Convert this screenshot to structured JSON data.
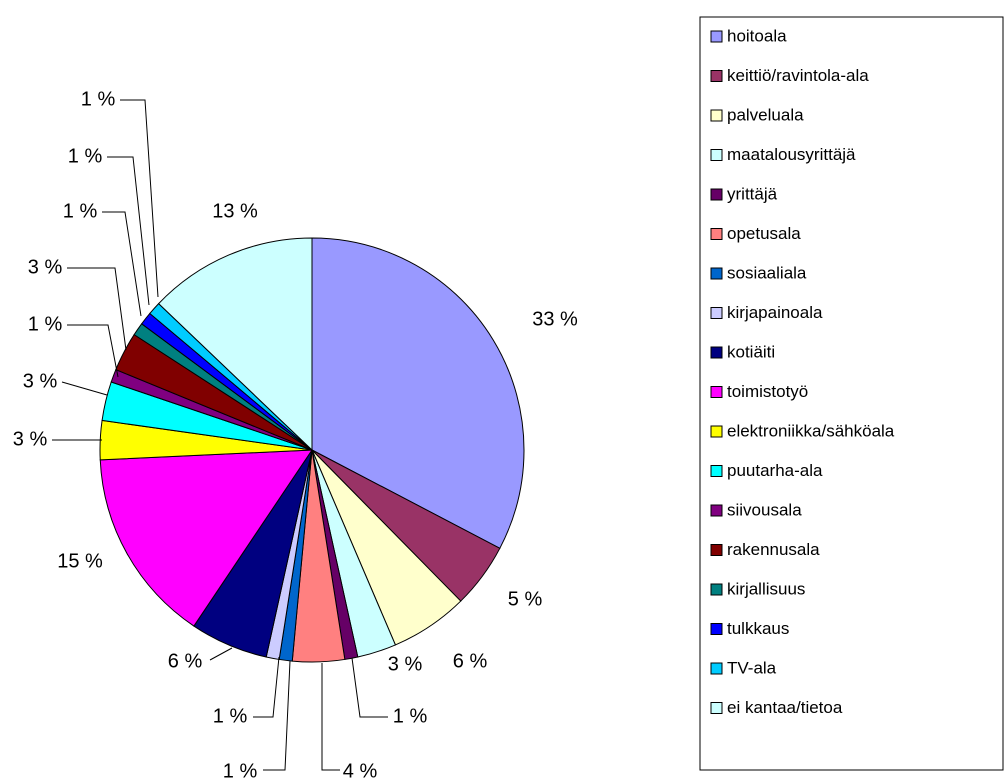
{
  "chart_data": {
    "type": "pie",
    "categories": [
      "hoitoala",
      "keittiö/ravintola-ala",
      "palveluala",
      "maatalousyrittäjä",
      "yrittäjä",
      "opetusala",
      "sosiaaliala",
      "kirjapainoala",
      "kotiäiti",
      "toimistotyö",
      "elektroniikka/sähköala",
      "puutarha-ala",
      "siivousala",
      "rakennusala",
      "kirjallisuus",
      "tulkkaus",
      "TV-ala",
      "ei kantaa/tietoa"
    ],
    "values": [
      33,
      5,
      6,
      3,
      1,
      4,
      1,
      1,
      6,
      15,
      3,
      3,
      1,
      3,
      1,
      1,
      1,
      13
    ],
    "value_labels": [
      "33 %",
      "5 %",
      "6 %",
      "3 %",
      "1 %",
      "4 %",
      "1 %",
      "1 %",
      "6 %",
      "15 %",
      "3 %",
      "3 %",
      "1 %",
      "3 %",
      "1 %",
      "1 %",
      "1 %",
      "13 %"
    ],
    "colors": [
      "#9999ff",
      "#993366",
      "#ffffcc",
      "#ccffff",
      "#660066",
      "#ff8080",
      "#0066cc",
      "#ccccff",
      "#000080",
      "#ff00ff",
      "#ffff00",
      "#00ffff",
      "#800080",
      "#800000",
      "#008080",
      "#0000ff",
      "#00ccff",
      "#ccffff"
    ],
    "legend": "right"
  }
}
